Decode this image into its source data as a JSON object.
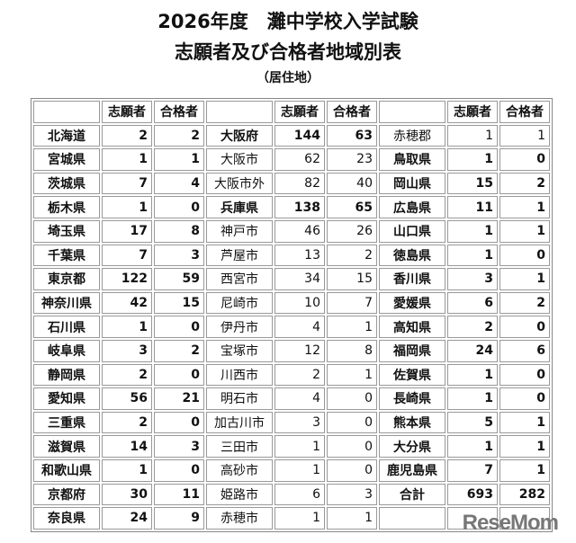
{
  "title": {
    "line1": "2026年度　灘中学校入学試験",
    "line2": "志願者及び合格者地域別表",
    "line3": "（居住地）"
  },
  "headers": [
    "",
    "志願者",
    "合格者",
    "",
    "志願者",
    "合格者",
    "",
    "志願者",
    "合格者"
  ],
  "rows": [
    [
      {
        "n": "北海道",
        "a": "2",
        "p": "2",
        "b": true
      },
      {
        "n": "大阪府",
        "a": "144",
        "p": "63",
        "b": true
      },
      {
        "n": "赤穂郡",
        "a": "1",
        "p": "1",
        "b": false
      }
    ],
    [
      {
        "n": "宮城県",
        "a": "1",
        "p": "1",
        "b": true
      },
      {
        "n": "大阪市",
        "a": "62",
        "p": "23",
        "b": false
      },
      {
        "n": "鳥取県",
        "a": "1",
        "p": "0",
        "b": true
      }
    ],
    [
      {
        "n": "茨城県",
        "a": "7",
        "p": "4",
        "b": true
      },
      {
        "n": "大阪市外",
        "a": "82",
        "p": "40",
        "b": false
      },
      {
        "n": "岡山県",
        "a": "15",
        "p": "2",
        "b": true
      }
    ],
    [
      {
        "n": "栃木県",
        "a": "1",
        "p": "0",
        "b": true
      },
      {
        "n": "兵庫県",
        "a": "138",
        "p": "65",
        "b": true
      },
      {
        "n": "広島県",
        "a": "11",
        "p": "1",
        "b": true
      }
    ],
    [
      {
        "n": "埼玉県",
        "a": "17",
        "p": "8",
        "b": true
      },
      {
        "n": "神戸市",
        "a": "46",
        "p": "26",
        "b": false
      },
      {
        "n": "山口県",
        "a": "1",
        "p": "1",
        "b": true
      }
    ],
    [
      {
        "n": "千葉県",
        "a": "7",
        "p": "3",
        "b": true
      },
      {
        "n": "芦屋市",
        "a": "13",
        "p": "2",
        "b": false
      },
      {
        "n": "徳島県",
        "a": "1",
        "p": "0",
        "b": true
      }
    ],
    [
      {
        "n": "東京都",
        "a": "122",
        "p": "59",
        "b": true
      },
      {
        "n": "西宮市",
        "a": "34",
        "p": "15",
        "b": false
      },
      {
        "n": "香川県",
        "a": "3",
        "p": "1",
        "b": true
      }
    ],
    [
      {
        "n": "神奈川県",
        "a": "42",
        "p": "15",
        "b": true
      },
      {
        "n": "尼崎市",
        "a": "10",
        "p": "7",
        "b": false
      },
      {
        "n": "愛媛県",
        "a": "6",
        "p": "2",
        "b": true
      }
    ],
    [
      {
        "n": "石川県",
        "a": "1",
        "p": "0",
        "b": true
      },
      {
        "n": "伊丹市",
        "a": "4",
        "p": "1",
        "b": false
      },
      {
        "n": "高知県",
        "a": "2",
        "p": "0",
        "b": true
      }
    ],
    [
      {
        "n": "岐阜県",
        "a": "3",
        "p": "2",
        "b": true
      },
      {
        "n": "宝塚市",
        "a": "12",
        "p": "8",
        "b": false
      },
      {
        "n": "福岡県",
        "a": "24",
        "p": "6",
        "b": true
      }
    ],
    [
      {
        "n": "静岡県",
        "a": "2",
        "p": "0",
        "b": true
      },
      {
        "n": "川西市",
        "a": "2",
        "p": "1",
        "b": false
      },
      {
        "n": "佐賀県",
        "a": "1",
        "p": "0",
        "b": true
      }
    ],
    [
      {
        "n": "愛知県",
        "a": "56",
        "p": "21",
        "b": true
      },
      {
        "n": "明石市",
        "a": "4",
        "p": "0",
        "b": false
      },
      {
        "n": "長崎県",
        "a": "1",
        "p": "0",
        "b": true
      }
    ],
    [
      {
        "n": "三重県",
        "a": "2",
        "p": "0",
        "b": true
      },
      {
        "n": "加古川市",
        "a": "3",
        "p": "0",
        "b": false
      },
      {
        "n": "熊本県",
        "a": "5",
        "p": "1",
        "b": true
      }
    ],
    [
      {
        "n": "滋賀県",
        "a": "14",
        "p": "3",
        "b": true
      },
      {
        "n": "三田市",
        "a": "1",
        "p": "0",
        "b": false
      },
      {
        "n": "大分県",
        "a": "1",
        "p": "1",
        "b": true
      }
    ],
    [
      {
        "n": "和歌山県",
        "a": "1",
        "p": "0",
        "b": true
      },
      {
        "n": "高砂市",
        "a": "1",
        "p": "0",
        "b": false
      },
      {
        "n": "鹿児島県",
        "a": "7",
        "p": "1",
        "b": true
      }
    ],
    [
      {
        "n": "京都府",
        "a": "30",
        "p": "11",
        "b": true
      },
      {
        "n": "姫路市",
        "a": "6",
        "p": "3",
        "b": false
      },
      {
        "n": "合計",
        "a": "693",
        "p": "282",
        "b": true
      }
    ],
    [
      {
        "n": "奈良県",
        "a": "24",
        "p": "9",
        "b": true
      },
      {
        "n": "赤穂市",
        "a": "1",
        "p": "1",
        "b": false
      },
      {
        "n": "",
        "a": "",
        "p": "",
        "b": true
      }
    ]
  ],
  "watermark": "ReseMom"
}
